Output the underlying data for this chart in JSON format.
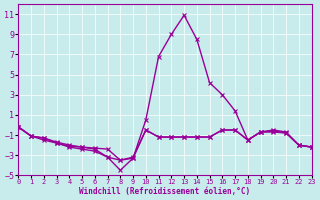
{
  "background_color": "#c8ecec",
  "line_color": "#990099",
  "xlim": [
    0,
    23
  ],
  "ylim": [
    -5,
    12
  ],
  "yticks": [
    -5,
    -3,
    -1,
    1,
    3,
    5,
    7,
    9,
    11
  ],
  "xticks": [
    0,
    1,
    2,
    3,
    4,
    5,
    6,
    7,
    8,
    9,
    10,
    11,
    12,
    13,
    14,
    15,
    16,
    17,
    18,
    19,
    20,
    21,
    22,
    23
  ],
  "xlabel": "Windchill (Refroidissement éolien,°C)",
  "x": [
    0,
    1,
    2,
    3,
    4,
    5,
    6,
    7,
    8,
    9,
    10,
    11,
    12,
    13,
    14,
    15,
    16,
    17,
    18,
    19,
    20,
    21,
    22,
    23
  ],
  "series": [
    [
      -0.2,
      -1.1,
      -1.3,
      -1.8,
      -2.1,
      -2.2,
      -2.4,
      -3.2,
      -4.5,
      -3.3,
      0.5,
      6.8,
      9.0,
      10.9,
      8.5,
      4.2,
      3.0,
      1.4,
      -1.5,
      -0.7,
      -0.7,
      -0.8,
      -2.0,
      -2.2
    ],
    [
      -0.2,
      -1.1,
      -1.3,
      -1.7,
      -2.0,
      -2.2,
      -2.3,
      -2.4,
      -3.5,
      -3.3,
      -0.5,
      -1.2,
      -1.2,
      -1.2,
      -1.2,
      -1.2,
      -0.5,
      -0.5,
      -1.5,
      -0.7,
      -0.5,
      -0.7,
      -2.0,
      -2.2
    ],
    [
      -0.2,
      -1.1,
      -1.5,
      -1.8,
      -2.2,
      -2.4,
      -2.6,
      -3.2,
      -3.5,
      -3.2,
      -0.5,
      -1.2,
      -1.2,
      -1.2,
      -1.2,
      -1.2,
      -0.5,
      -0.5,
      -1.5,
      -0.7,
      -0.6,
      -0.8,
      -2.0,
      -2.2
    ]
  ]
}
